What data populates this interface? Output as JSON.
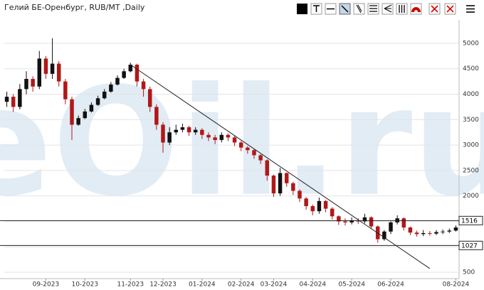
{
  "chart_data": {
    "type": "candlestick",
    "title": "Гелий БЕ-Оренбург, RUB/MT ,Daily",
    "watermark": "eOil.ru",
    "categories": [
      null,
      null,
      null,
      null,
      null,
      null,
      "09-2023",
      null,
      null,
      null,
      null,
      null,
      "10-2023",
      null,
      null,
      null,
      null,
      null,
      null,
      "11-2023",
      null,
      null,
      null,
      null,
      "12-2023",
      null,
      null,
      null,
      null,
      null,
      "01-2024",
      null,
      null,
      null,
      null,
      null,
      "02-2024",
      null,
      null,
      null,
      null,
      "03-2024",
      null,
      null,
      null,
      null,
      null,
      "04-2024",
      null,
      null,
      null,
      null,
      null,
      "05-2024",
      null,
      null,
      null,
      null,
      null,
      "06-2024",
      null,
      null,
      null,
      null,
      null,
      null,
      null,
      null,
      null,
      "08-2024"
    ],
    "open": [
      3850,
      3950,
      3750,
      4100,
      4300,
      4150,
      4700,
      4400,
      4600,
      4250,
      3900,
      3400,
      3530,
      3660,
      3790,
      3920,
      4050,
      4190,
      4320,
      4450,
      4580,
      4250,
      4100,
      3750,
      3400,
      3050,
      3250,
      3300,
      3350,
      3250,
      3300,
      3200,
      3150,
      3100,
      3200,
      3150,
      3050,
      2950,
      2900,
      2800,
      2700,
      2400,
      2050,
      2450,
      2250,
      2100,
      1950,
      1800,
      1700,
      1900,
      1750,
      1600,
      1500,
      1480,
      1520,
      1500,
      1580,
      1400,
      1150,
      1300,
      1480,
      1560,
      1380,
      1280,
      1250,
      1270,
      1260,
      1290,
      1300,
      1320
    ],
    "high": [
      4050,
      4000,
      4200,
      4450,
      4350,
      4850,
      4750,
      5100,
      4650,
      4300,
      3950,
      3580,
      3710,
      3840,
      3970,
      4100,
      4240,
      4370,
      4500,
      4620,
      4600,
      4300,
      4150,
      3800,
      3450,
      3350,
      3400,
      3420,
      3380,
      3350,
      3330,
      3250,
      3200,
      3250,
      3230,
      3180,
      3080,
      2980,
      2920,
      2820,
      2720,
      2420,
      2550,
      2460,
      2280,
      2130,
      1980,
      1830,
      1970,
      1920,
      1780,
      1620,
      1560,
      1580,
      1560,
      1650,
      1600,
      1420,
      1330,
      1500,
      1620,
      1580,
      1400,
      1320,
      1330,
      1310,
      1330,
      1340,
      1360,
      1420
    ],
    "low": [
      3750,
      3650,
      3700,
      4000,
      4050,
      4100,
      4300,
      4300,
      4150,
      3800,
      3100,
      3380,
      3510,
      3640,
      3770,
      3900,
      4030,
      4170,
      4300,
      4430,
      4150,
      3950,
      3650,
      3300,
      2850,
      3000,
      3200,
      3250,
      3180,
      3200,
      3120,
      3080,
      3020,
      3050,
      3080,
      2980,
      2880,
      2830,
      2730,
      2630,
      2300,
      1980,
      2000,
      2180,
      2020,
      1880,
      1730,
      1620,
      1650,
      1680,
      1540,
      1430,
      1420,
      1440,
      1450,
      1460,
      1350,
      1080,
      1120,
      1250,
      1440,
      1320,
      1230,
      1200,
      1210,
      1220,
      1230,
      1250,
      1270,
      1300
    ],
    "close": [
      3950,
      3750,
      4100,
      4300,
      4150,
      4700,
      4400,
      4600,
      4250,
      3900,
      3400,
      3530,
      3660,
      3790,
      3920,
      4050,
      4190,
      4320,
      4450,
      4580,
      4250,
      4100,
      3750,
      3400,
      3050,
      3250,
      3300,
      3350,
      3250,
      3300,
      3200,
      3150,
      3100,
      3200,
      3150,
      3050,
      2950,
      2900,
      2800,
      2700,
      2400,
      2050,
      2450,
      2250,
      2100,
      1950,
      1800,
      1700,
      1900,
      1750,
      1600,
      1500,
      1480,
      1520,
      1500,
      1580,
      1400,
      1150,
      1300,
      1480,
      1560,
      1380,
      1280,
      1250,
      1270,
      1260,
      1290,
      1300,
      1320,
      1380
    ],
    "up_color": "#111111",
    "down_color": "#b01818",
    "ylim": [
      375,
      5460
    ],
    "yticks": [
      500,
      1000,
      1500,
      2000,
      2500,
      3000,
      3500,
      4000,
      4500,
      5000
    ],
    "grid": true,
    "hlines": [
      1516,
      1027
    ],
    "trendline": {
      "start": [
        19,
        4580
      ],
      "end": [
        65,
        573
      ]
    }
  }
}
